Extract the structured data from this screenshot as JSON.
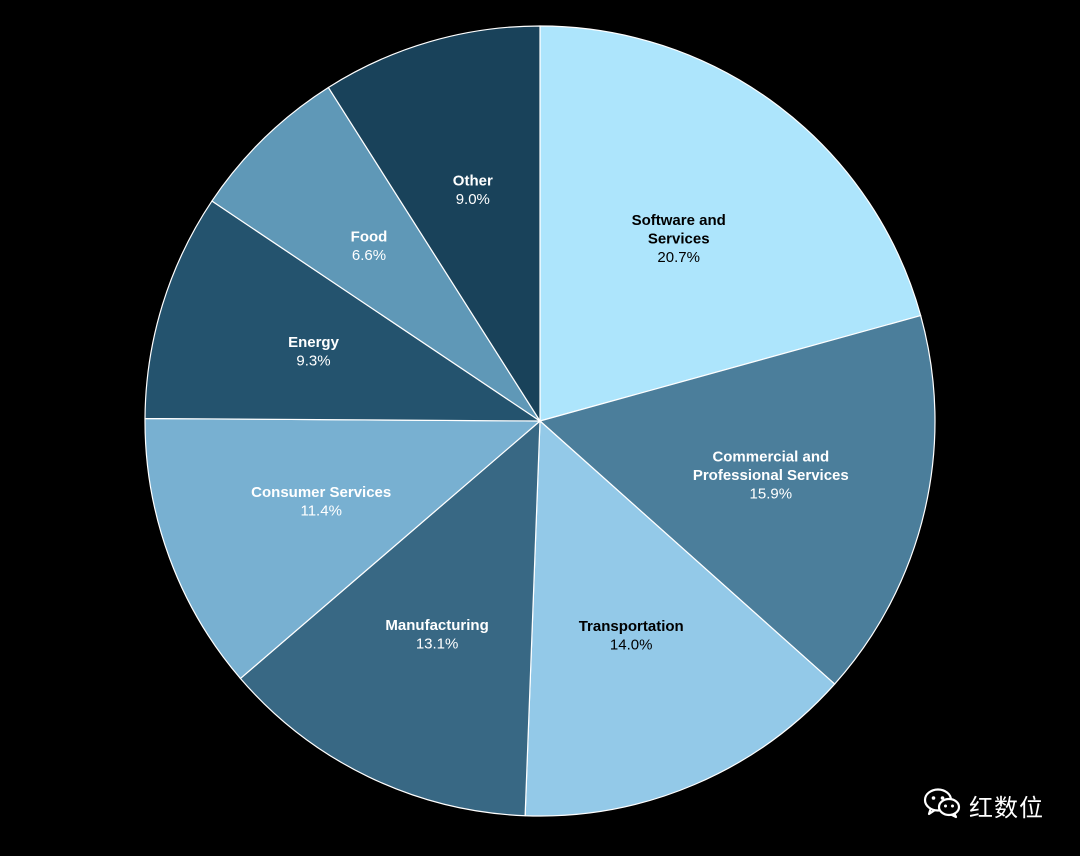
{
  "chart_data": {
    "type": "pie",
    "start_angle_deg": 0,
    "direction": "clockwise",
    "slices": [
      {
        "label_lines": [
          "Software and",
          "Services"
        ],
        "value": 20.7,
        "value_label": "20.7%",
        "color": "#ade5fc",
        "text_color": "#000000"
      },
      {
        "label_lines": [
          "Commercial and",
          "Professional Services"
        ],
        "value": 15.9,
        "value_label": "15.9%",
        "color": "#4b7e9b",
        "text_color": "#ffffff"
      },
      {
        "label_lines": [
          "Transportation"
        ],
        "value": 14.0,
        "value_label": "14.0%",
        "color": "#93c9e8",
        "text_color": "#000000"
      },
      {
        "label_lines": [
          "Manufacturing"
        ],
        "value": 13.1,
        "value_label": "13.1%",
        "color": "#386884",
        "text_color": "#ffffff"
      },
      {
        "label_lines": [
          "Consumer Services"
        ],
        "value": 11.4,
        "value_label": "11.4%",
        "color": "#78b0d1",
        "text_color": "#ffffff"
      },
      {
        "label_lines": [
          "Energy"
        ],
        "value": 9.3,
        "value_label": "9.3%",
        "color": "#24536e",
        "text_color": "#ffffff"
      },
      {
        "label_lines": [
          "Food"
        ],
        "value": 6.6,
        "value_label": "6.6%",
        "color": "#5f98b7",
        "text_color": "#ffffff"
      },
      {
        "label_lines": [
          "Other"
        ],
        "value": 9.0,
        "value_label": "9.0%",
        "color": "#19425a",
        "text_color": "#ffffff"
      }
    ]
  },
  "watermark": {
    "text": "红数位",
    "icon": "wechat-icon"
  }
}
